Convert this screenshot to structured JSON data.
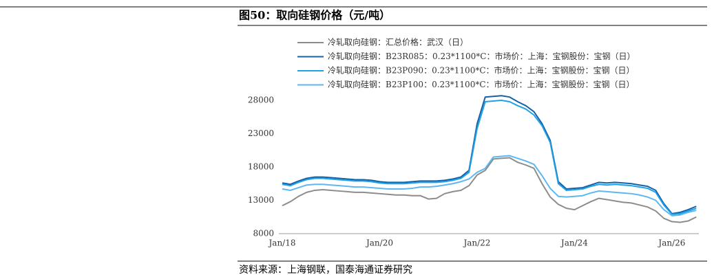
{
  "chart_data": {
    "type": "line",
    "title": "图50：取向硅钢价格（元/吨）",
    "source": "资料来源：上海钢联，国泰海通证券研究",
    "categories": [
      "Jan/18",
      null,
      null,
      null,
      null,
      null,
      null,
      null,
      null,
      null,
      null,
      null,
      "Jan/20",
      null,
      null,
      null,
      null,
      null,
      null,
      null,
      null,
      null,
      null,
      null,
      "Jan/22",
      null,
      null,
      null,
      null,
      null,
      null,
      null,
      null,
      null,
      null,
      null,
      "Jan/24",
      null,
      null,
      null,
      null,
      null,
      null,
      null,
      null,
      null,
      null,
      null,
      "Jan/26",
      null,
      null,
      null
    ],
    "ylim": [
      8000,
      29500
    ],
    "yticks": [
      8000,
      13000,
      18000,
      23000,
      28000
    ],
    "series": [
      {
        "name": "冷轧取向硅钢：汇总价格：武汉（日）",
        "color": "#8c8c8c",
        "values": [
          12200,
          12800,
          13600,
          14200,
          14500,
          14600,
          14500,
          14400,
          14300,
          14200,
          14200,
          14100,
          14000,
          13900,
          13800,
          13800,
          13700,
          13700,
          13200,
          13300,
          14000,
          14300,
          14500,
          15200,
          16800,
          17500,
          19200,
          19300,
          19400,
          18700,
          18300,
          17800,
          15500,
          13500,
          12400,
          11800,
          11600,
          12200,
          12800,
          13300,
          13100,
          12900,
          12700,
          12600,
          12300,
          12000,
          11400,
          10300,
          9800,
          9700,
          9900,
          10500
        ]
      },
      {
        "name": "冷轧取向硅钢：B23R085：0.23*1100*C：市场价：上海：宝钢股份：宝钢（日）",
        "color": "#1660a6",
        "values": [
          15600,
          15400,
          15900,
          16300,
          16500,
          16500,
          16400,
          16300,
          16200,
          16100,
          16100,
          16000,
          15800,
          15700,
          15700,
          15700,
          15800,
          15900,
          15900,
          15900,
          16000,
          16200,
          16500,
          17500,
          24500,
          28500,
          28600,
          28700,
          28500,
          27800,
          27200,
          26300,
          24500,
          22000,
          15800,
          14700,
          14800,
          14900,
          15300,
          15700,
          15600,
          15700,
          15600,
          15500,
          15300,
          15100,
          14500,
          12500,
          11000,
          11200,
          11600,
          12100
        ]
      },
      {
        "name": "冷轧取向硅钢：B23P090：0.23*1100*C：市场价：上海：宝钢股份：宝钢（日）",
        "color": "#1ea0e6",
        "values": [
          15400,
          15200,
          15700,
          16100,
          16300,
          16300,
          16200,
          16100,
          16000,
          15900,
          15900,
          15800,
          15600,
          15500,
          15500,
          15500,
          15600,
          15700,
          15700,
          15700,
          15800,
          16000,
          16300,
          17200,
          23800,
          27800,
          27900,
          28000,
          27800,
          27200,
          26700,
          25800,
          24200,
          21700,
          15500,
          14500,
          14600,
          14700,
          15100,
          15400,
          15300,
          15400,
          15300,
          15200,
          15000,
          14800,
          14200,
          12300,
          10900,
          11000,
          11400,
          11800
        ]
      },
      {
        "name": "冷轧取向硅钢：B23P100：0.23*1100*C：市场价：上海：宝钢股份：宝钢（日）",
        "color": "#5cb6f2",
        "values": [
          14700,
          14500,
          14900,
          15300,
          15400,
          15400,
          15300,
          15200,
          15100,
          15000,
          15000,
          14900,
          14800,
          14700,
          14700,
          14700,
          14800,
          15000,
          15000,
          15100,
          15300,
          15500,
          15800,
          16200,
          17200,
          17800,
          19500,
          19600,
          19700,
          19300,
          18900,
          18400,
          16700,
          14800,
          13600,
          13500,
          13600,
          13700,
          14100,
          14400,
          14300,
          14200,
          14100,
          14000,
          13800,
          13500,
          13000,
          11600,
          10700,
          10800,
          11200,
          11500
        ]
      }
    ]
  }
}
